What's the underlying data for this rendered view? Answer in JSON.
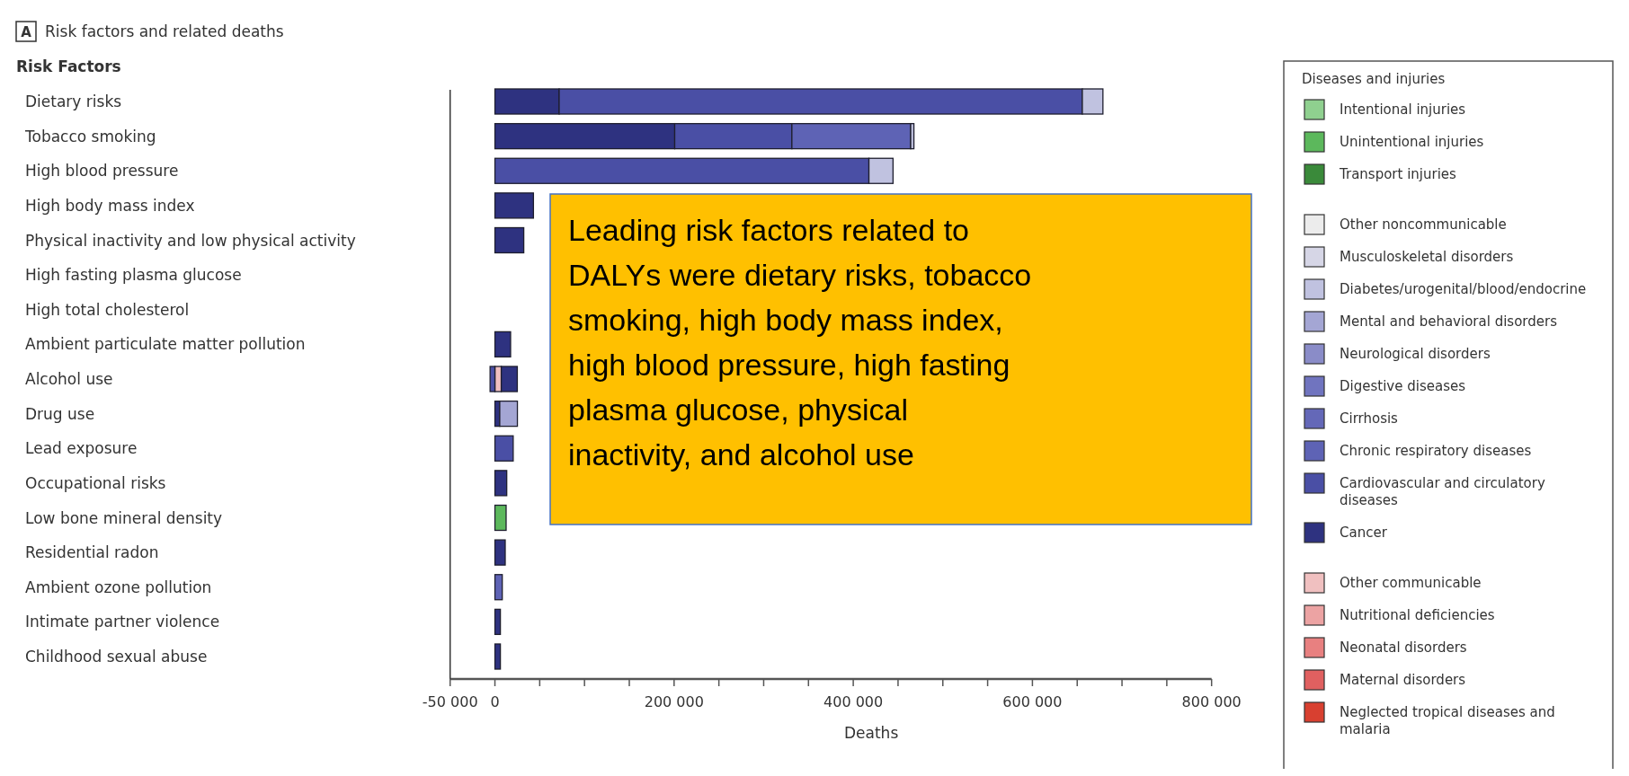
{
  "chart_data": {
    "type": "bar",
    "orientation": "horizontal",
    "stacked": true,
    "title": "Risk factors and related deaths",
    "ylabel": "Risk Factors",
    "xlabel": "Deaths",
    "legend_title": "Diseases and injuries",
    "legend": "right",
    "annotations": [
      "A",
      "Leading risk factors related to DALYs were dietary risks, tobacco smoking, high body mass index, high blood pressure, high fasting plasma glucose, physical inactivity, and alcohol use"
    ],
    "categories": [
      "Dietary risks",
      "Tobacco smoking",
      "High blood pressure",
      "High body mass index",
      "Physical inactivity and low physical activity",
      "High fasting plasma glucose",
      "High total cholesterol",
      "Ambient particulate matter pollution",
      "Alcohol use",
      "Drug use",
      "Lead exposure",
      "Occupational risks",
      "Low bone mineral density",
      "Residential radon",
      "Ambient ozone pollution",
      "Intimate partner violence",
      "Childhood sexual abuse"
    ],
    "xlim": [
      -50000,
      800000
    ],
    "xticks": [
      {
        "value": -50000,
        "label": "-50 000"
      },
      0,
      {
        "value": 50000,
        "label": null
      },
      {
        "value": 100000,
        "label": null
      },
      {
        "value": 150000,
        "label": null
      },
      {
        "value": 200000,
        "label": "200 000"
      },
      {
        "value": 250000,
        "label": null
      },
      {
        "value": 300000,
        "label": null
      },
      {
        "value": 350000,
        "label": null
      },
      {
        "value": 400000,
        "label": "400 000"
      },
      {
        "value": 450000,
        "label": null
      },
      {
        "value": 500000,
        "label": null
      },
      {
        "value": 550000,
        "label": null
      },
      {
        "value": 600000,
        "label": "600 000"
      },
      {
        "value": 650000,
        "label": null
      },
      {
        "value": 700000,
        "label": null
      },
      {
        "value": 750000,
        "label": null
      },
      {
        "value": 800000,
        "label": "800 000"
      }
    ],
    "series": [
      {
        "name": "Neglected tropical diseases and malaria",
        "color": "#d84030",
        "values": [
          null,
          null,
          null,
          null,
          null,
          null,
          null,
          null,
          null,
          null,
          null,
          null,
          null,
          null,
          null,
          null,
          null
        ]
      },
      {
        "name": "Maternal disorders",
        "color": "#e06060",
        "values": [
          null,
          null,
          null,
          null,
          null,
          null,
          null,
          null,
          null,
          null,
          null,
          null,
          null,
          null,
          null,
          null,
          null
        ]
      },
      {
        "name": "Neonatal disorders",
        "color": "#e88080",
        "values": [
          null,
          null,
          null,
          null,
          null,
          null,
          null,
          null,
          null,
          null,
          null,
          null,
          null,
          null,
          null,
          null,
          null
        ]
      },
      {
        "name": "Nutritional deficiencies",
        "color": "#eca3a3",
        "values": [
          null,
          null,
          null,
          null,
          null,
          null,
          null,
          null,
          null,
          null,
          null,
          null,
          null,
          null,
          null,
          null,
          null
        ]
      },
      {
        "name": "Other communicable",
        "color": "#f0c0c0",
        "values": [
          null,
          null,
          null,
          null,
          null,
          null,
          null,
          null,
          7100,
          null,
          null,
          null,
          null,
          null,
          null,
          null,
          null
        ]
      },
      {
        "name": "Cancer",
        "color": "#2e3280",
        "values": [
          71700,
          200700,
          null,
          43000,
          32200,
          null,
          null,
          17500,
          17900,
          5400,
          null,
          13200,
          null,
          11500,
          null,
          6100,
          6100
        ]
      },
      {
        "name": "Cardiovascular and circulatory diseases",
        "color": "#4a4fa5",
        "values": [
          584000,
          130800,
          417500,
          null,
          null,
          null,
          null,
          null,
          -5400,
          null,
          20400,
          null,
          null,
          null,
          null,
          null,
          null
        ]
      },
      {
        "name": "Chronic respiratory diseases",
        "color": "#5e63b5",
        "values": [
          null,
          132600,
          null,
          null,
          null,
          null,
          null,
          null,
          null,
          null,
          null,
          null,
          null,
          null,
          8200,
          null,
          null
        ]
      },
      {
        "name": "Cirrhosis",
        "color": "#6468b8",
        "values": [
          null,
          null,
          null,
          null,
          null,
          null,
          null,
          null,
          null,
          null,
          null,
          null,
          null,
          null,
          null,
          null,
          null
        ]
      },
      {
        "name": "Digestive diseases",
        "color": "#7074bf",
        "values": [
          null,
          null,
          null,
          null,
          null,
          null,
          null,
          null,
          null,
          null,
          null,
          null,
          null,
          null,
          null,
          null,
          null
        ]
      },
      {
        "name": "Neurological disorders",
        "color": "#8a8cc8",
        "values": [
          null,
          null,
          null,
          null,
          null,
          null,
          null,
          null,
          null,
          null,
          null,
          null,
          null,
          null,
          null,
          null,
          null
        ]
      },
      {
        "name": "Mental and behavioral disorders",
        "color": "#a4a6d4",
        "values": [
          null,
          null,
          null,
          null,
          null,
          null,
          null,
          null,
          null,
          19700,
          null,
          null,
          null,
          null,
          null,
          null,
          null
        ]
      },
      {
        "name": "Diabetes/urogenital/blood/endocrine",
        "color": "#c0c2e0",
        "values": [
          23000,
          3600,
          26900,
          null,
          null,
          null,
          null,
          null,
          null,
          null,
          null,
          null,
          null,
          null,
          null,
          null,
          null
        ]
      },
      {
        "name": "Musculoskeletal disorders",
        "color": "#d6d6e6",
        "values": [
          null,
          null,
          null,
          null,
          null,
          null,
          null,
          null,
          null,
          null,
          null,
          null,
          null,
          null,
          null,
          null,
          null
        ]
      },
      {
        "name": "Other noncommunicable",
        "color": "#ececec",
        "values": [
          null,
          null,
          null,
          null,
          null,
          null,
          null,
          null,
          null,
          null,
          null,
          null,
          null,
          null,
          null,
          null,
          null
        ]
      },
      {
        "name": "Transport injuries",
        "color": "#3a8a3a",
        "values": [
          null,
          null,
          null,
          null,
          null,
          null,
          null,
          null,
          null,
          null,
          null,
          null,
          null,
          null,
          null,
          null,
          null
        ]
      },
      {
        "name": "Unintentional injuries",
        "color": "#5cb85c",
        "values": [
          null,
          null,
          null,
          null,
          null,
          null,
          null,
          null,
          null,
          null,
          null,
          null,
          12500,
          null,
          null,
          null,
          null
        ]
      },
      {
        "name": "Intentional injuries",
        "color": "#8fd08f",
        "values": [
          null,
          null,
          null,
          null,
          null,
          null,
          null,
          null,
          null,
          null,
          null,
          null,
          null,
          null,
          null,
          null,
          null
        ]
      }
    ]
  }
}
